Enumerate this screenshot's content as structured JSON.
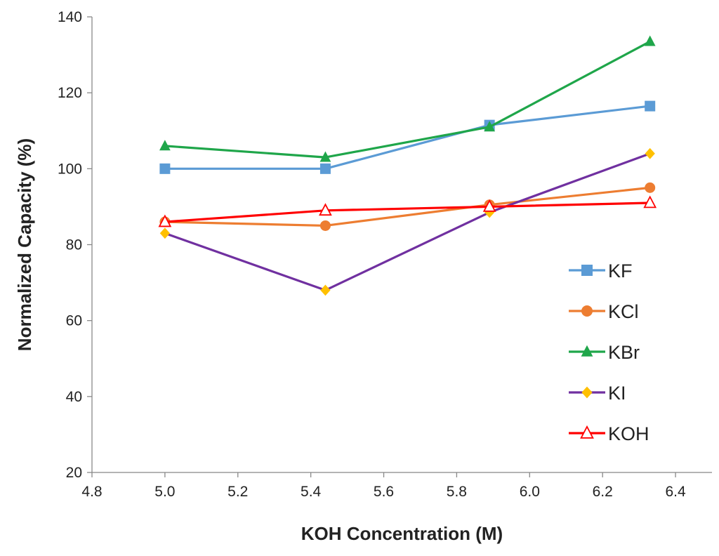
{
  "chart_data": {
    "type": "line",
    "title": "",
    "xlabel": "KOH Concentration (M)",
    "ylabel": "Normalized Capacity (%)",
    "xlim": [
      4.8,
      6.5
    ],
    "ylim": [
      20,
      140
    ],
    "xticks": [
      4.8,
      5.0,
      5.2,
      5.4,
      5.6,
      5.8,
      6.0,
      6.2,
      6.4
    ],
    "xtick_labels": [
      "4.8",
      "5.0",
      "5.2",
      "5.4",
      "5.6",
      "5.8",
      "6.0",
      "6.2",
      "6.4"
    ],
    "yticks": [
      20,
      40,
      60,
      80,
      100,
      120,
      140
    ],
    "ytick_labels": [
      "20",
      "40",
      "60",
      "80",
      "100",
      "120",
      "140"
    ],
    "grid": false,
    "legend_position": "right",
    "x": [
      5.0,
      5.44,
      5.89,
      6.33
    ],
    "series": [
      {
        "name": "KF",
        "values": [
          100,
          100,
          111.5,
          116.5
        ],
        "color": "#5b9bd5",
        "marker": "square"
      },
      {
        "name": "KCl",
        "values": [
          86,
          85,
          90.5,
          95
        ],
        "color": "#ed7d31",
        "marker": "circle"
      },
      {
        "name": "KBr",
        "values": [
          106,
          103,
          111,
          133.5
        ],
        "color": "#1fa64a",
        "marker": "triangle"
      },
      {
        "name": "KI",
        "values": [
          83,
          68,
          88.5,
          104
        ],
        "color": "#7030a0",
        "marker": "diamond",
        "marker_color": "#ffc000"
      },
      {
        "name": "KOH",
        "values": [
          86,
          89,
          90,
          91
        ],
        "color": "#ff0000",
        "marker": "triangle-open"
      }
    ]
  }
}
